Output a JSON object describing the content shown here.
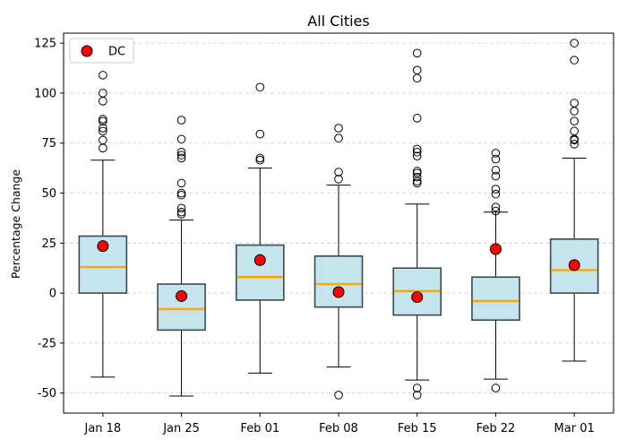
{
  "chart_data": {
    "type": "box",
    "title": "All Cities",
    "xlabel": "",
    "ylabel": "Percentage Change",
    "categories": [
      "Jan 18",
      "Jan 25",
      "Feb 01",
      "Feb 08",
      "Feb 15",
      "Feb 22",
      "Mar 01"
    ],
    "ylim": [
      -60,
      130
    ],
    "yticks": [
      -50,
      -25,
      0,
      25,
      50,
      75,
      100,
      125
    ],
    "grid": "horizontal-dashed",
    "legend": {
      "placement": "top-left",
      "entries": [
        "DC"
      ]
    },
    "colors": {
      "box_fill": "#c5e4ee",
      "box_edge": "#3b4a4f",
      "median": "#ffa500",
      "marker": "#ff0000",
      "grid": "#cccccc"
    },
    "boxes": [
      {
        "category": "Jan 18",
        "whisker_low": -42,
        "q1": 0,
        "median": 13,
        "q3": 28.5,
        "whisker_high": 66.5,
        "outliers": [
          72.5,
          76.5,
          81,
          82.5,
          86,
          87,
          96,
          100,
          109
        ]
      },
      {
        "category": "Jan 25",
        "whisker_low": -51.5,
        "q1": -18.5,
        "median": -8,
        "q3": 4.5,
        "whisker_high": 36.5,
        "outliers": [
          39.5,
          40.5,
          42.5,
          49,
          50,
          55,
          67.5,
          69,
          70.5,
          77,
          86.5
        ]
      },
      {
        "category": "Feb 01",
        "whisker_low": -40,
        "q1": -3.5,
        "median": 8,
        "q3": 24,
        "whisker_high": 62.5,
        "outliers": [
          66.5,
          67.5,
          79.5,
          103
        ]
      },
      {
        "category": "Feb 08",
        "whisker_low": -37,
        "q1": -7,
        "median": 4.5,
        "q3": 18.5,
        "whisker_high": 54,
        "outliers": [
          -51,
          57,
          60.5,
          77.5,
          82.5
        ]
      },
      {
        "category": "Feb 15",
        "whisker_low": -43.5,
        "q1": -11,
        "median": 1,
        "q3": 12.5,
        "whisker_high": 44.5,
        "outliers": [
          -51,
          -47.5,
          55,
          56,
          58,
          60,
          61,
          68.5,
          70.5,
          72,
          87.5,
          107.5,
          111.5,
          120
        ]
      },
      {
        "category": "Feb 22",
        "whisker_low": -43,
        "q1": -13.5,
        "median": -4,
        "q3": 8,
        "whisker_high": 40.5,
        "outliers": [
          -47.5,
          41,
          43,
          49.5,
          52,
          58.5,
          61.5,
          67,
          70
        ]
      },
      {
        "category": "Mar 01",
        "whisker_low": -34,
        "q1": 0,
        "median": 11.5,
        "q3": 27,
        "whisker_high": 67.5,
        "outliers": [
          74.5,
          76.5,
          77,
          81,
          86,
          91,
          95,
          116.5,
          125
        ]
      }
    ],
    "series": [
      {
        "name": "DC",
        "type": "scatter",
        "values": [
          23.5,
          -1.5,
          16.5,
          0.5,
          -2,
          22,
          14
        ]
      }
    ]
  }
}
